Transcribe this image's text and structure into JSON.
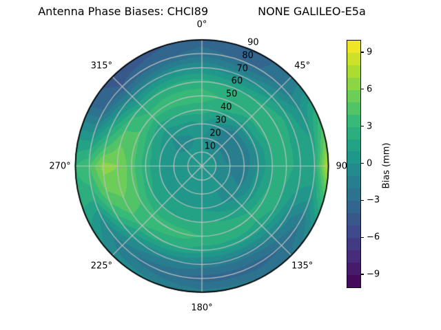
{
  "figure": {
    "title_left": "Antenna Phase Biases: CHCI89",
    "title_right": "NONE GALILEO-E5a",
    "background": "#ffffff"
  },
  "chart_data": {
    "type": "heatmap",
    "projection": "polar",
    "title": "Antenna Phase Biases: CHCI89        NONE GALILEO-E5a",
    "theta_zero": "top",
    "theta_direction": "clockwise",
    "grid": true,
    "grid_color": "#c0c0c0",
    "outline_color": "#000000",
    "angular_ticks": [
      {
        "deg": 0,
        "label": "0°"
      },
      {
        "deg": 45,
        "label": "45°"
      },
      {
        "deg": 90,
        "label": "90°"
      },
      {
        "deg": 135,
        "label": "135°"
      },
      {
        "deg": 180,
        "label": "180°"
      },
      {
        "deg": 225,
        "label": "225°"
      },
      {
        "deg": 270,
        "label": "270°"
      },
      {
        "deg": 315,
        "label": "315°"
      }
    ],
    "radial_ticks": [
      {
        "value": 10,
        "label": "10"
      },
      {
        "value": 20,
        "label": "20"
      },
      {
        "value": 30,
        "label": "30"
      },
      {
        "value": 40,
        "label": "40"
      },
      {
        "value": 50,
        "label": "50"
      },
      {
        "value": 60,
        "label": "60"
      },
      {
        "value": 70,
        "label": "70"
      },
      {
        "value": 80,
        "label": "80"
      },
      {
        "value": 90,
        "label": "90"
      }
    ],
    "radial_range": [
      0,
      90
    ],
    "azimuth_deg": [
      0,
      15,
      30,
      45,
      60,
      75,
      90,
      105,
      120,
      135,
      150,
      165,
      180,
      195,
      210,
      225,
      240,
      255,
      270,
      285,
      300,
      315,
      330,
      345
    ],
    "zenith_deg": [
      0,
      10,
      20,
      30,
      40,
      50,
      60,
      70,
      80,
      90
    ],
    "values_mm": [
      [
        0.5,
        0.5,
        0.0,
        1.0,
        2.5,
        3.5,
        2.5,
        0.0,
        -2.5,
        -3.5
      ],
      [
        0.5,
        0.5,
        -0.5,
        0.0,
        2.0,
        3.0,
        2.0,
        -0.5,
        -3.0,
        -4.0
      ],
      [
        0.5,
        0.0,
        -1.0,
        -1.0,
        1.5,
        3.0,
        2.0,
        -0.5,
        -3.0,
        -3.5
      ],
      [
        0.5,
        0.0,
        -1.5,
        -2.0,
        0.5,
        2.5,
        2.5,
        0.5,
        -2.0,
        -2.0
      ],
      [
        0.5,
        0.0,
        -1.5,
        -2.0,
        0.5,
        2.5,
        3.0,
        1.5,
        0.0,
        1.5
      ],
      [
        0.5,
        0.0,
        -1.5,
        -2.0,
        0.0,
        2.0,
        2.5,
        1.5,
        1.0,
        5.0
      ],
      [
        0.5,
        0.0,
        -1.0,
        -1.5,
        0.0,
        2.0,
        2.5,
        1.5,
        2.0,
        8.5
      ],
      [
        0.5,
        0.0,
        -1.0,
        -1.5,
        0.5,
        2.0,
        2.0,
        1.0,
        0.5,
        4.0
      ],
      [
        0.5,
        0.0,
        -0.5,
        -1.0,
        0.5,
        2.5,
        2.0,
        -0.5,
        -2.0,
        0.0
      ],
      [
        0.5,
        0.0,
        0.0,
        -0.5,
        1.0,
        2.5,
        1.5,
        -1.0,
        -3.0,
        -2.0
      ],
      [
        0.5,
        0.0,
        0.0,
        0.0,
        1.5,
        3.0,
        1.5,
        -1.5,
        -3.5,
        -2.0
      ],
      [
        0.5,
        0.0,
        0.0,
        0.5,
        2.0,
        3.0,
        1.5,
        -1.5,
        -3.5,
        -1.5
      ],
      [
        0.5,
        0.0,
        0.5,
        1.0,
        2.0,
        3.0,
        1.5,
        -1.5,
        -3.5,
        -1.5
      ],
      [
        0.5,
        0.0,
        0.5,
        1.0,
        2.0,
        3.5,
        2.0,
        -1.0,
        -3.0,
        -1.0
      ],
      [
        0.5,
        0.0,
        0.5,
        1.0,
        2.0,
        3.5,
        2.5,
        -0.5,
        -2.5,
        -0.5
      ],
      [
        0.5,
        0.5,
        0.5,
        1.0,
        2.0,
        3.5,
        3.0,
        0.5,
        -1.5,
        -0.5
      ],
      [
        0.5,
        0.5,
        0.5,
        1.0,
        2.0,
        4.0,
        4.5,
        3.0,
        -0.5,
        1.0
      ],
      [
        0.5,
        0.5,
        0.5,
        1.0,
        2.5,
        4.5,
        5.5,
        5.0,
        2.5,
        2.5
      ],
      [
        0.5,
        0.5,
        0.5,
        1.0,
        2.5,
        4.5,
        6.0,
        6.5,
        4.0,
        3.0
      ],
      [
        0.5,
        0.5,
        0.5,
        1.0,
        2.5,
        4.5,
        5.0,
        3.0,
        0.5,
        0.5
      ],
      [
        0.5,
        0.5,
        0.0,
        0.5,
        2.0,
        4.0,
        3.5,
        0.5,
        -3.0,
        -3.5
      ],
      [
        0.5,
        0.5,
        -0.5,
        0.0,
        1.5,
        3.5,
        2.0,
        -1.0,
        -4.0,
        -4.5
      ],
      [
        0.5,
        0.5,
        -0.5,
        0.5,
        2.0,
        3.5,
        2.5,
        -0.5,
        -3.5,
        -4.5
      ],
      [
        0.5,
        0.5,
        0.0,
        0.5,
        2.5,
        3.5,
        2.5,
        0.0,
        -3.0,
        -4.0
      ]
    ],
    "colorbar": {
      "label": "Bias (mm)",
      "vmin": -10,
      "vmax": 10,
      "level_step": 1,
      "colormap": "viridis",
      "colormap_anchors": [
        "#440154",
        "#482878",
        "#3e4989",
        "#31688e",
        "#26828e",
        "#1f9e89",
        "#35b779",
        "#6ece58",
        "#b5de2b",
        "#fde725"
      ],
      "ticks": [
        {
          "value": 9,
          "label": "9"
        },
        {
          "value": 6,
          "label": "6"
        },
        {
          "value": 3,
          "label": "3"
        },
        {
          "value": 0,
          "label": "0"
        },
        {
          "value": -3,
          "label": "−3"
        },
        {
          "value": -6,
          "label": "−6"
        },
        {
          "value": -9,
          "label": "−9"
        }
      ]
    }
  }
}
